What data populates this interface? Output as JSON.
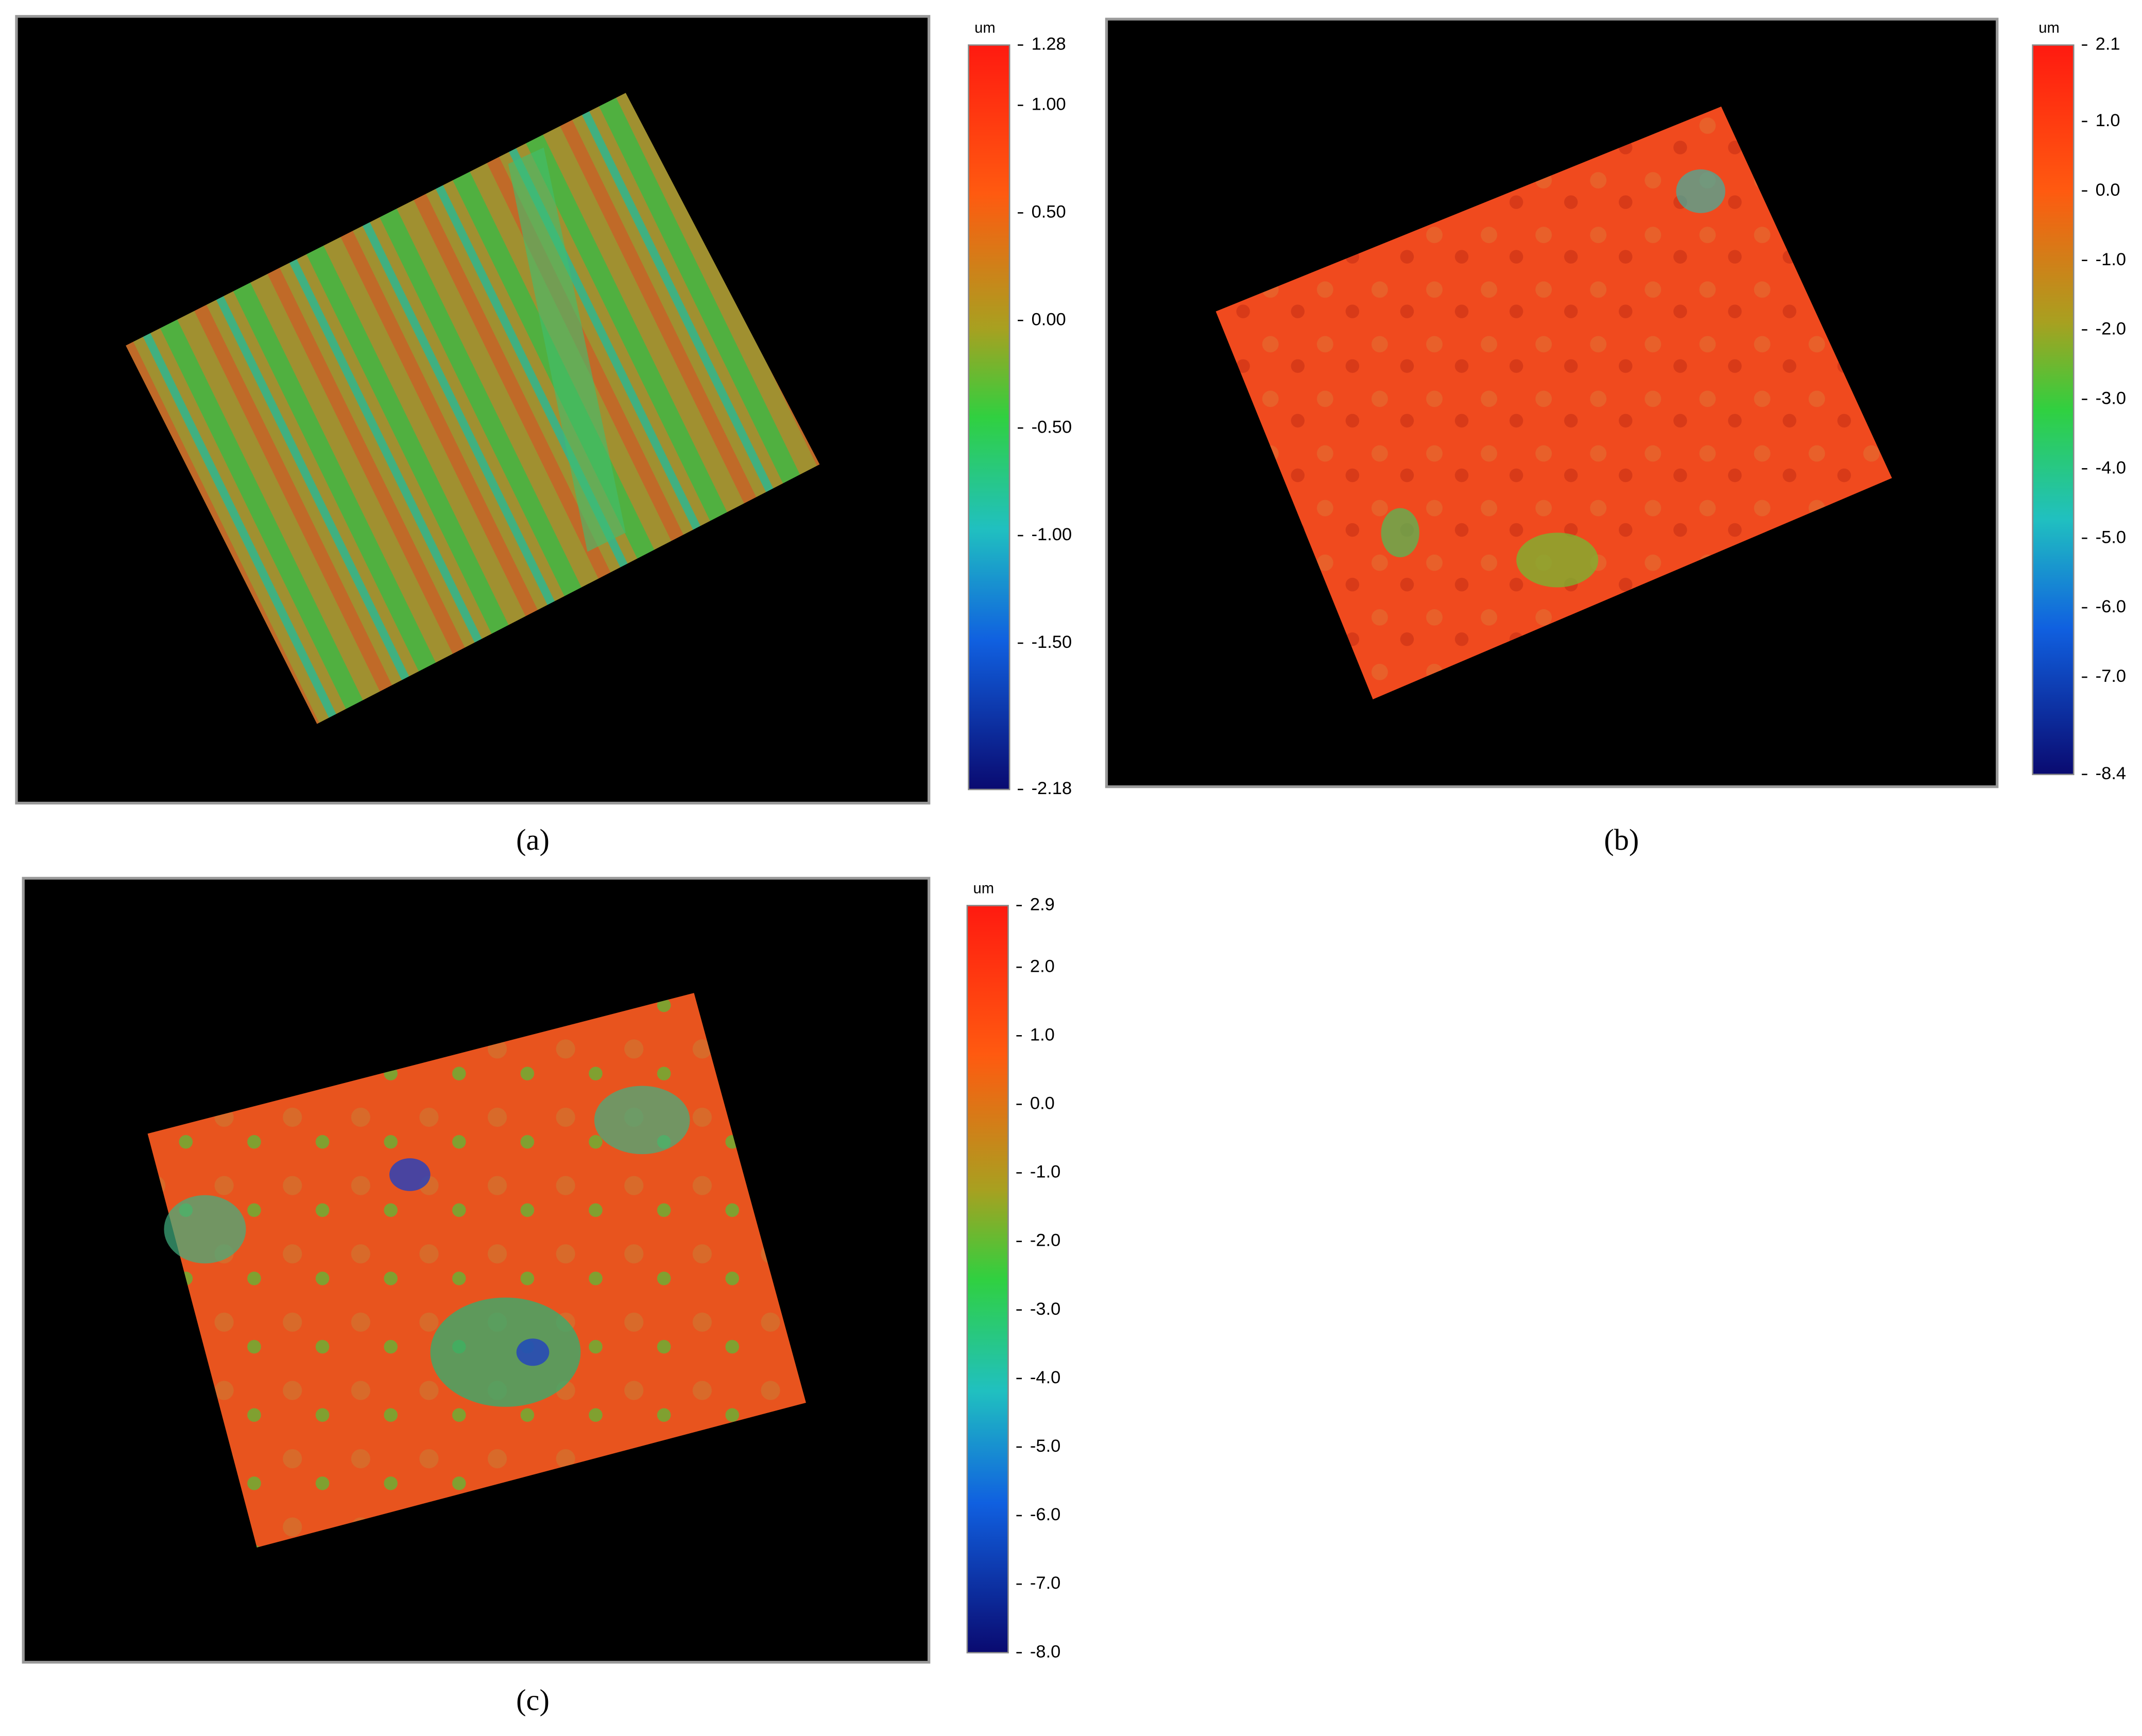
{
  "panels": [
    {
      "caption": "(a)",
      "unit": "um",
      "range": [
        -2.18,
        1.28
      ],
      "ticks": [
        1.28,
        {
          "value": 1.0,
          "label": "1.00"
        },
        {
          "value": 0.5,
          "label": "0.50"
        },
        {
          "value": 0,
          "label": "0.00"
        },
        {
          "value": -0.5,
          "label": "-0.50"
        },
        {
          "value": -1.0,
          "label": "-1.00"
        },
        {
          "value": -1.5,
          "label": "-1.50"
        },
        -2.18
      ]
    },
    {
      "caption": "(b)",
      "unit": "um",
      "range": [
        -8.4,
        2.1
      ],
      "ticks": [
        2.1,
        {
          "value": 1.0,
          "label": "1.0"
        },
        {
          "value": 0,
          "label": "0.0"
        },
        {
          "value": -1.0,
          "label": "-1.0"
        },
        {
          "value": -2.0,
          "label": "-2.0"
        },
        {
          "value": -3.0,
          "label": "-3.0"
        },
        {
          "value": -4.0,
          "label": "-4.0"
        },
        {
          "value": -5.0,
          "label": "-5.0"
        },
        {
          "value": -6.0,
          "label": "-6.0"
        },
        {
          "value": -7.0,
          "label": "-7.0"
        },
        -8.4
      ]
    },
    {
      "caption": "(c)",
      "unit": "um",
      "range": [
        -8.0,
        2.9
      ],
      "ticks": [
        2.9,
        {
          "value": 2.0,
          "label": "2.0"
        },
        {
          "value": 1.0,
          "label": "1.0"
        },
        {
          "value": 0,
          "label": "0.0"
        },
        {
          "value": -1.0,
          "label": "-1.0"
        },
        {
          "value": -2.0,
          "label": "-2.0"
        },
        {
          "value": -3.0,
          "label": "-3.0"
        },
        {
          "value": -4.0,
          "label": "-4.0"
        },
        {
          "value": -5.0,
          "label": "-5.0"
        },
        {
          "value": -6.0,
          "label": "-6.0"
        },
        {
          "value": -7.0,
          "label": "-7.0"
        },
        {
          "value": -8.0,
          "label": "-8.0"
        }
      ]
    }
  ]
}
